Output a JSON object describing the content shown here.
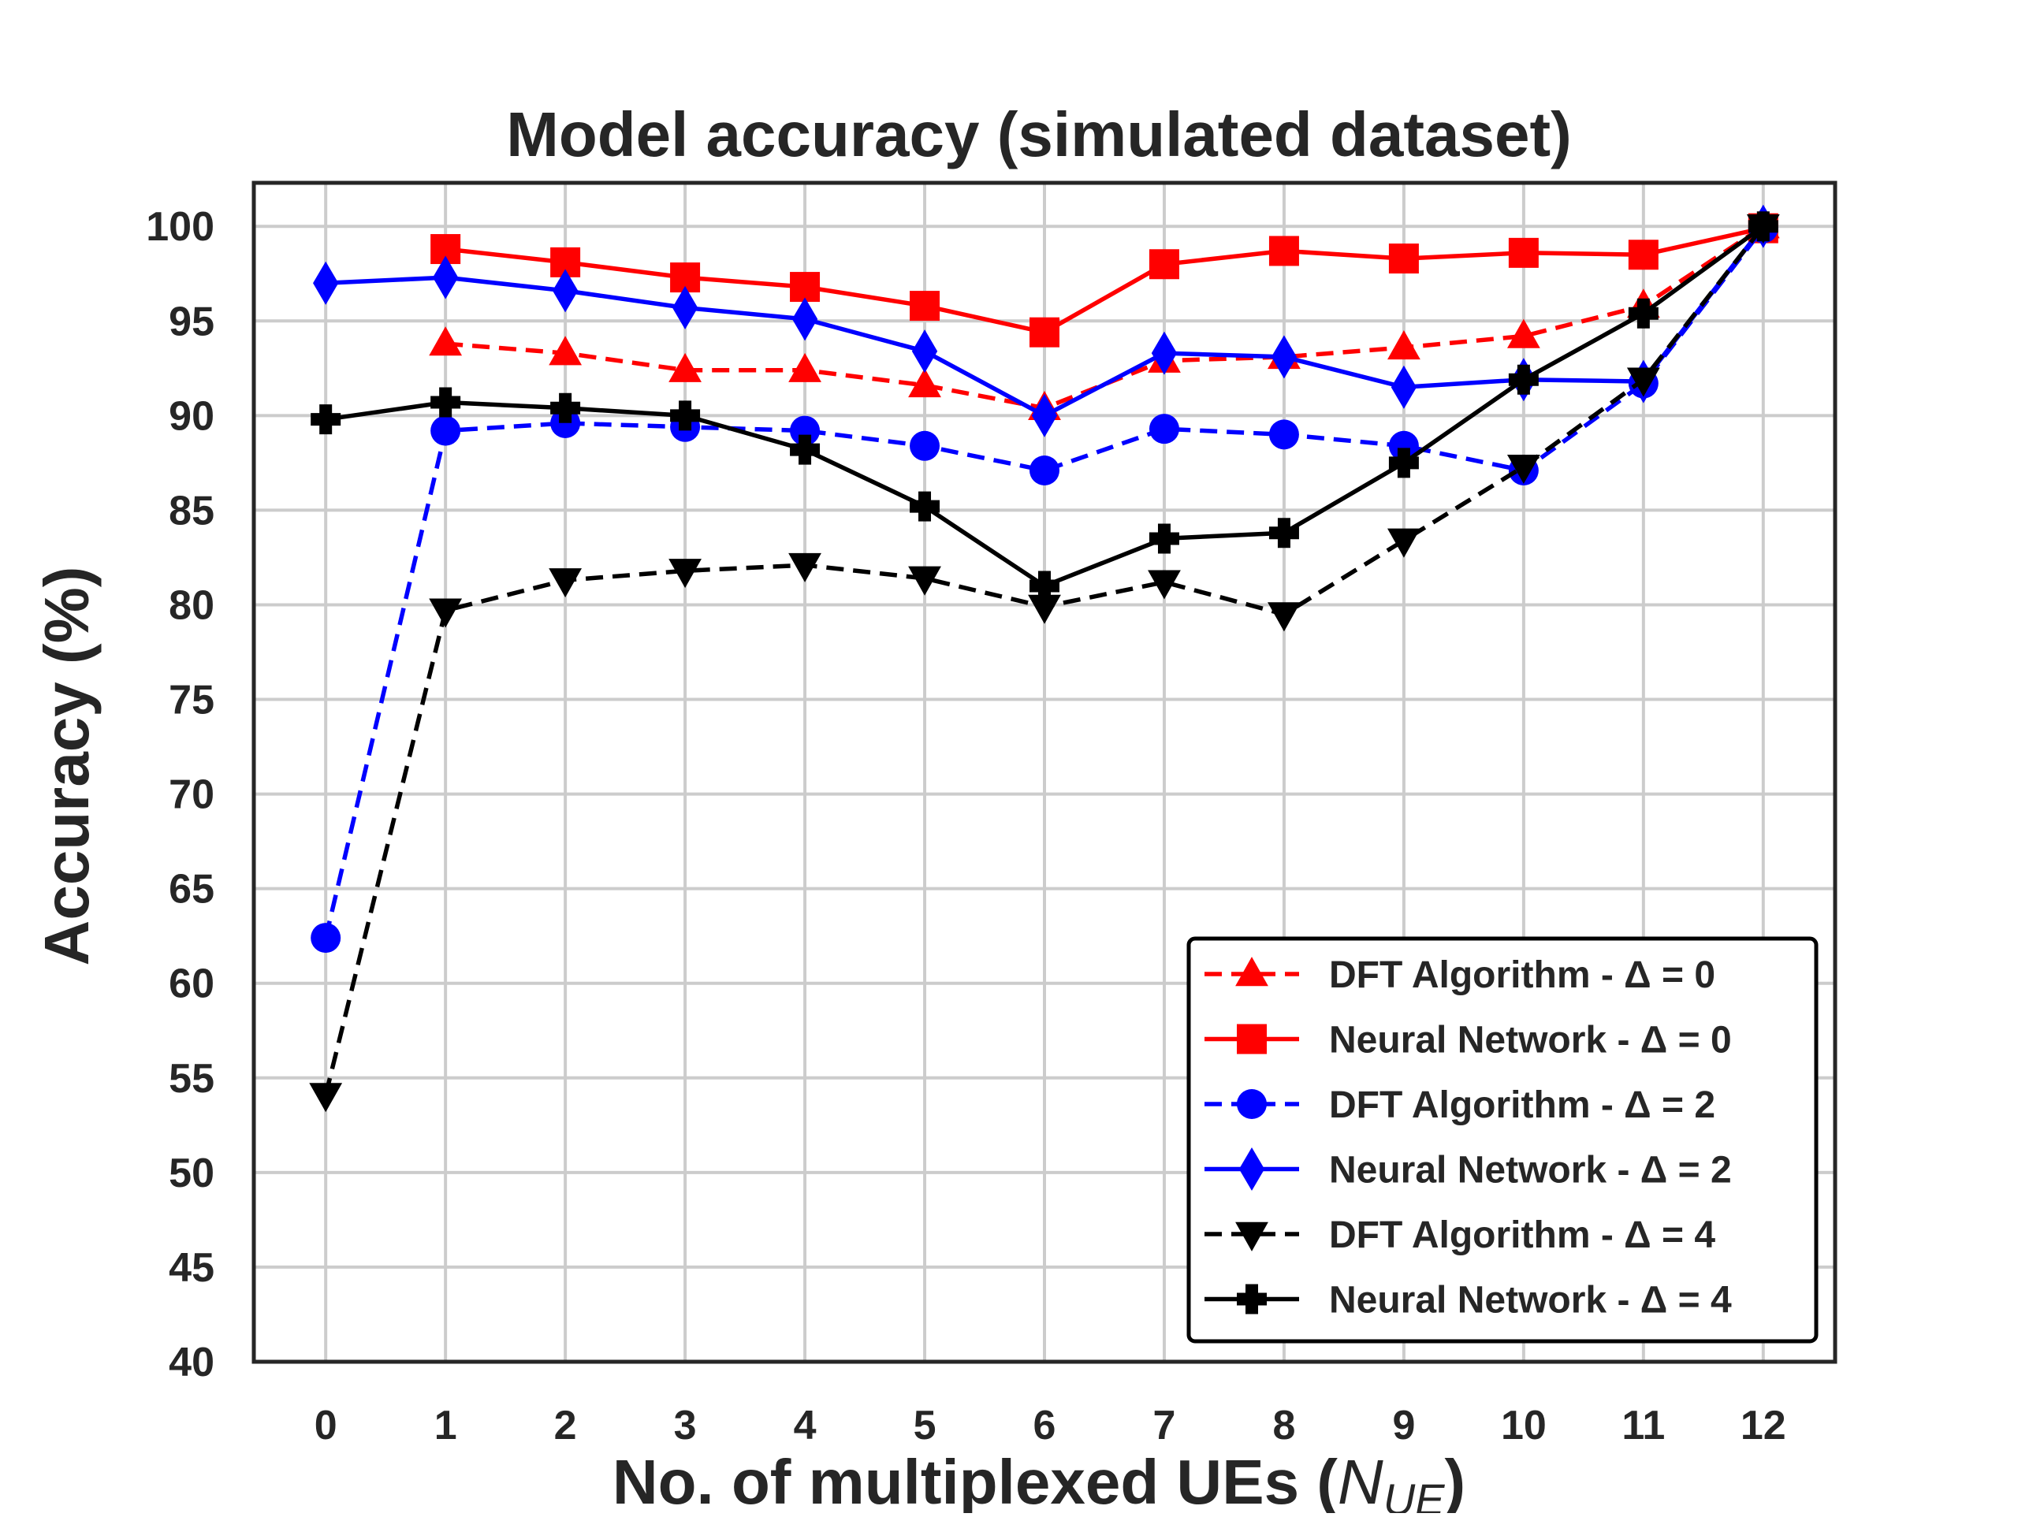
{
  "chart_data": {
    "type": "line",
    "title": "Model accuracy (simulated dataset)",
    "xlabel": "No. of multiplexed UEs (",
    "xlabel_math": "N",
    "xlabel_sub": "UE",
    "xlabel_close": ")",
    "ylabel": "Accuracy (%)",
    "x": [
      0,
      1,
      2,
      3,
      4,
      5,
      6,
      7,
      8,
      9,
      10,
      11,
      12
    ],
    "xlim": [
      -0.6,
      12.6
    ],
    "ylim": [
      40,
      102.3
    ],
    "yticks": [
      40,
      45,
      50,
      55,
      60,
      65,
      70,
      75,
      80,
      85,
      90,
      95,
      100
    ],
    "grid": true,
    "legend_position": "lower-right",
    "series": [
      {
        "name": "DFT Algorithm - Δ = 0",
        "color": "#ff0000",
        "dash": true,
        "marker": "triangle-up",
        "values": [
          null,
          93.8,
          93.3,
          92.4,
          92.4,
          91.6,
          90.4,
          92.9,
          93.1,
          93.6,
          94.2,
          95.8,
          100
        ]
      },
      {
        "name": "Neural Network - Δ = 0",
        "color": "#ff0000",
        "dash": false,
        "marker": "square",
        "values": [
          null,
          98.8,
          98.1,
          97.3,
          96.8,
          95.8,
          94.4,
          98.0,
          98.7,
          98.3,
          98.6,
          98.5,
          99.9
        ]
      },
      {
        "name": "DFT Algorithm - Δ = 2",
        "color": "#0000ff",
        "dash": true,
        "marker": "circle",
        "values": [
          62.4,
          89.2,
          89.6,
          89.4,
          89.2,
          88.4,
          87.1,
          89.3,
          89.0,
          88.4,
          87.1,
          91.7,
          99.9
        ]
      },
      {
        "name": "Neural Network - Δ = 2",
        "color": "#0000ff",
        "dash": false,
        "marker": "diamond",
        "values": [
          97.0,
          97.3,
          96.6,
          95.7,
          95.1,
          93.4,
          90.0,
          93.3,
          93.1,
          91.5,
          91.9,
          91.8,
          100
        ]
      },
      {
        "name": "DFT Algorithm - Δ = 4",
        "color": "#000000",
        "dash": true,
        "marker": "triangle-down",
        "values": [
          54.1,
          79.7,
          81.3,
          81.8,
          82.1,
          81.4,
          79.9,
          81.2,
          79.5,
          83.4,
          87.3,
          91.9,
          100
        ]
      },
      {
        "name": "Neural Network - Δ = 4",
        "color": "#000000",
        "dash": false,
        "marker": "plus",
        "values": [
          89.8,
          90.7,
          90.4,
          90.0,
          88.2,
          85.2,
          81.0,
          83.5,
          83.8,
          87.5,
          91.9,
          95.4,
          100
        ]
      }
    ]
  }
}
